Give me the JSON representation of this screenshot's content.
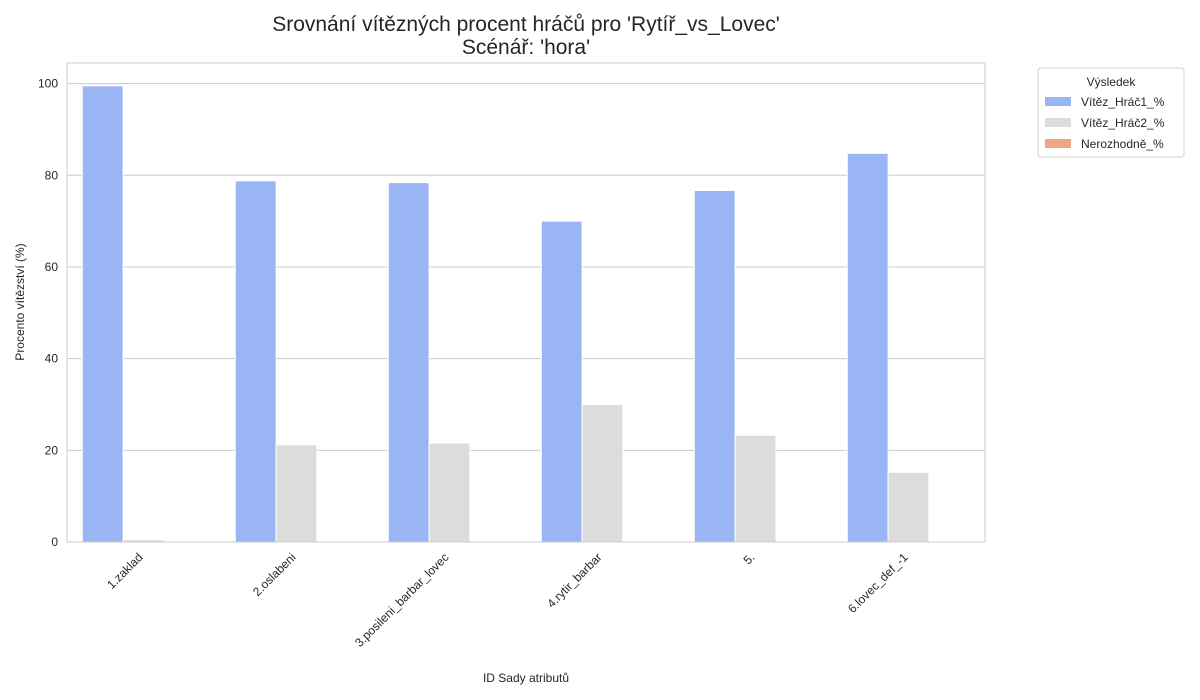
{
  "chart_data": {
    "type": "bar",
    "title": "Srovnání vítězných procent hráčů pro 'Rytíř_vs_Lovec'",
    "subtitle": "Scénář: 'hora'",
    "xlabel": "ID Sady atributů",
    "ylabel": "Procento vítězství (%)",
    "ylim": [
      0,
      104.5
    ],
    "yticks": [
      0,
      20,
      40,
      60,
      80,
      100
    ],
    "grid": true,
    "legend_title": "Výsledek",
    "legend_position": "outside-top-right",
    "categories": [
      "1.zaklad",
      "2.oslabeni",
      "3.posileni_barbar_lovec",
      "4.rytir_barbar",
      "5.",
      "6.lovec_def_-1"
    ],
    "series": [
      {
        "name": "Vítěz_Hráč1_%",
        "color": "#9ab5f4",
        "values": [
          99.5,
          78.8,
          78.4,
          70.0,
          76.7,
          84.8
        ]
      },
      {
        "name": "Vítěz_Hráč2_%",
        "color": "#dcdcdc",
        "values": [
          0.5,
          21.2,
          21.6,
          30.0,
          23.3,
          15.2
        ]
      },
      {
        "name": "Nerozhodně_%",
        "color": "#f0a686",
        "values": [
          0,
          0,
          0,
          0,
          0,
          0
        ]
      }
    ]
  }
}
